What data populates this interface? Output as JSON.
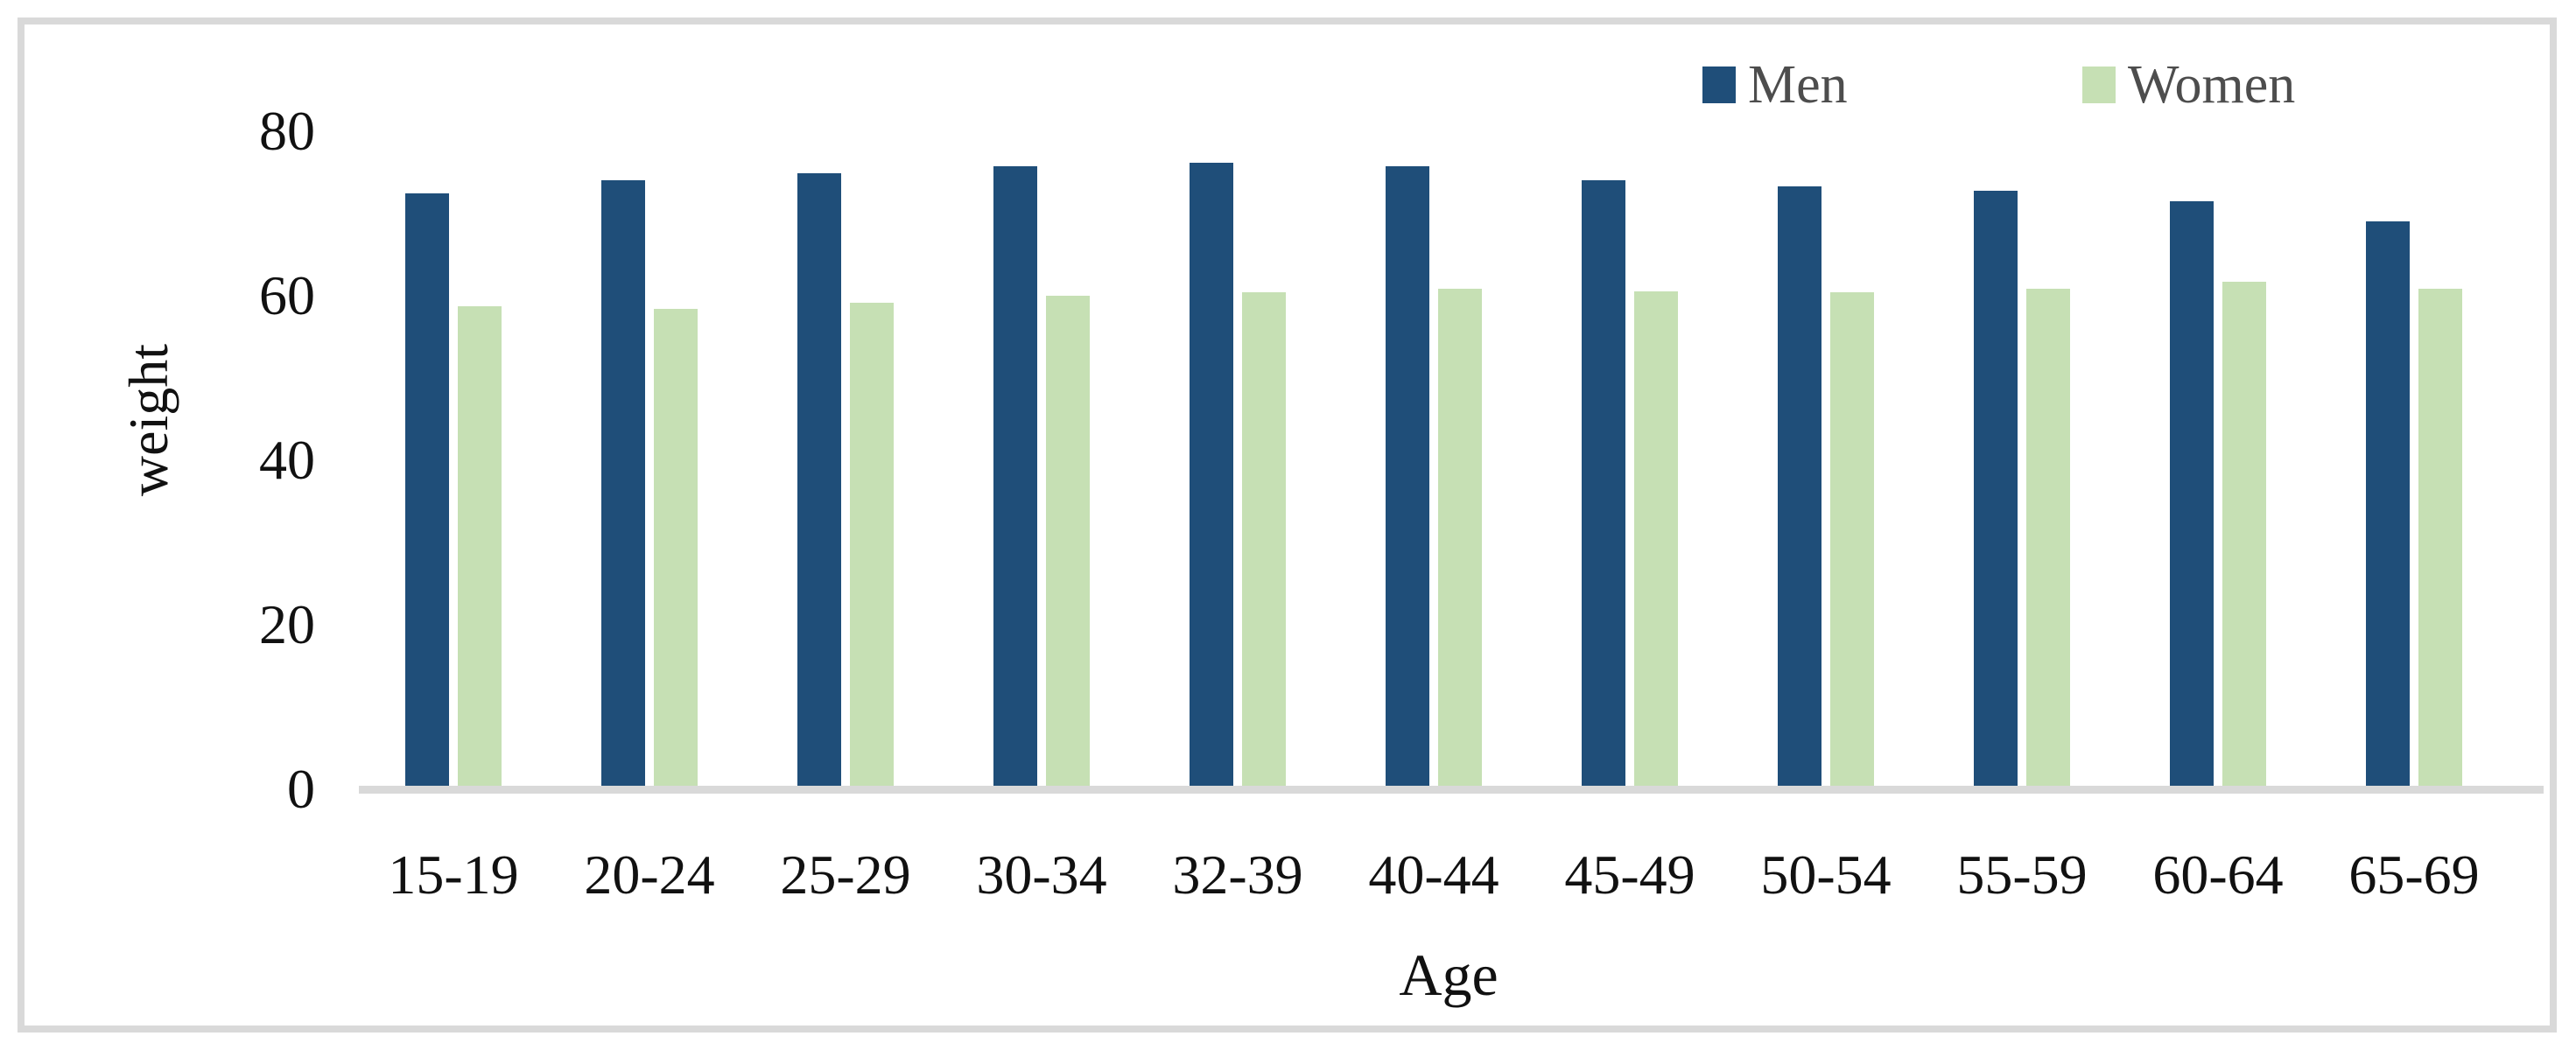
{
  "colors": {
    "men": "#1F4E79",
    "women": "#C6E0B4",
    "axis": "#D9D9D9",
    "frame": "#D9D9D9",
    "tick_text": "#111111",
    "legend_text": "#4D4D4D"
  },
  "chart_data": {
    "type": "bar",
    "title": "",
    "xlabel": "Age",
    "ylabel": "weight",
    "categories": [
      "15-19",
      "20-24",
      "25-29",
      "30-34",
      "32-39",
      "40-44",
      "45-49",
      "50-54",
      "55-59",
      "60-64",
      "65-69"
    ],
    "series": [
      {
        "name": "Men",
        "values": [
          72.4,
          74.0,
          74.9,
          75.7,
          76.2,
          75.7,
          74.0,
          73.3,
          72.8,
          71.5,
          69.0
        ]
      },
      {
        "name": "Women",
        "values": [
          58.7,
          58.4,
          59.2,
          60.0,
          60.4,
          60.9,
          60.5,
          60.4,
          60.9,
          61.7,
          60.9
        ]
      }
    ],
    "ylim": [
      0,
      80
    ],
    "yticks": [
      0,
      20,
      40,
      60,
      80
    ],
    "grid": false,
    "legend_position": "top-right"
  }
}
